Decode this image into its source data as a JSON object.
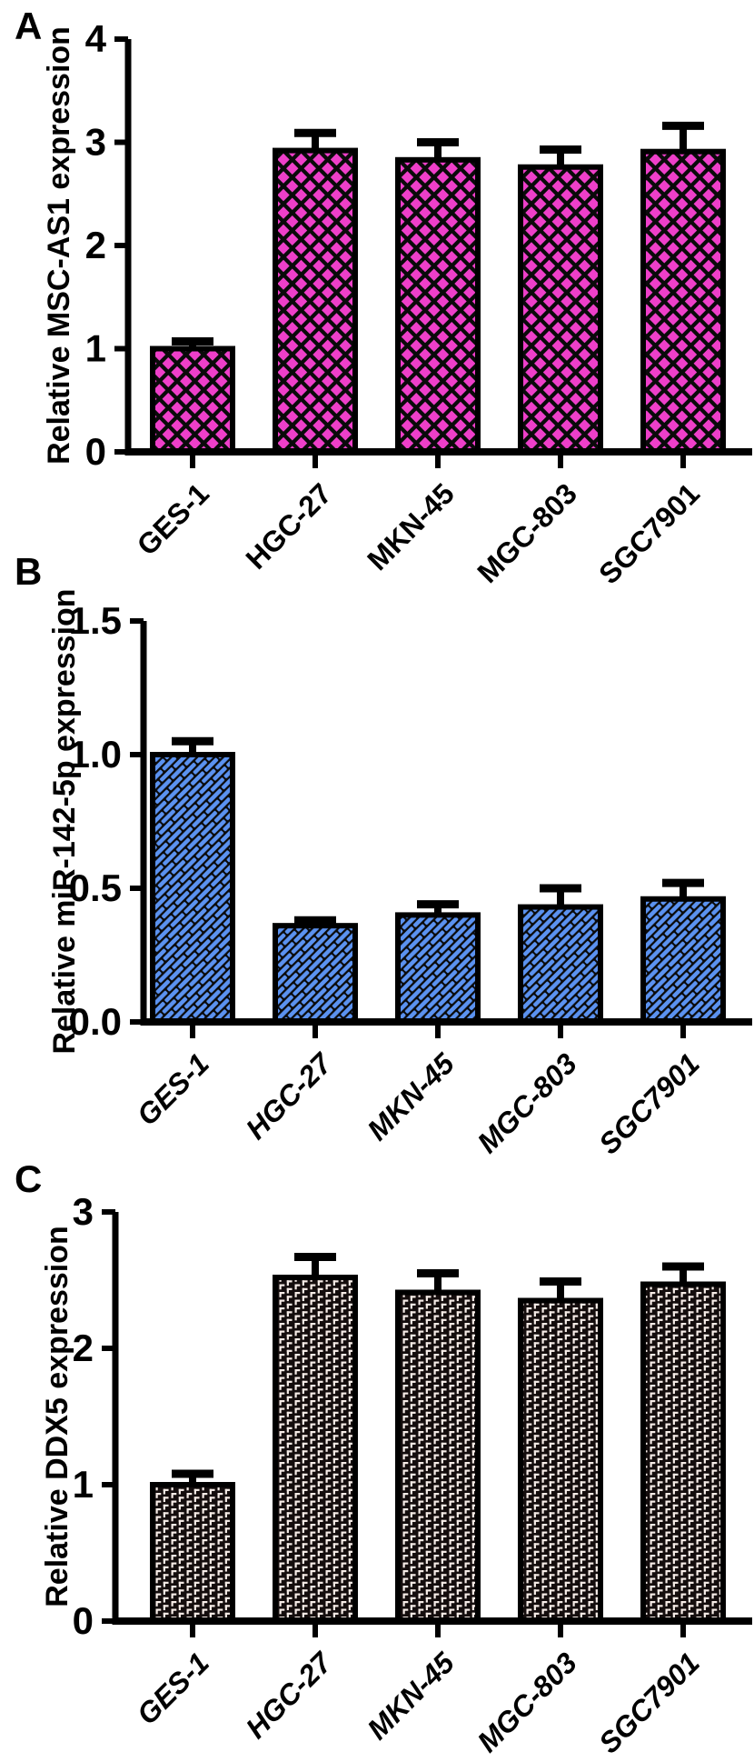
{
  "figure": {
    "background": "#ffffff",
    "axis_color": "#000000"
  },
  "chart_data": [
    {
      "type": "bar",
      "panel_label": "A",
      "title": "",
      "xlabel": "",
      "ylabel": "Relative MSC-AS1 expression",
      "categories": [
        "GES-1",
        "HGC-27",
        "MKN-45",
        "MGC-803",
        "SGC7901"
      ],
      "values": [
        1.0,
        2.92,
        2.83,
        2.76,
        2.91
      ],
      "errors_plus": [
        0.07,
        0.17,
        0.17,
        0.17,
        0.25
      ],
      "ylim": [
        0,
        4
      ],
      "yticks": [
        0,
        1,
        2,
        3,
        4
      ],
      "ytick_decimals": 0,
      "grid": "off",
      "legend": "none",
      "pattern": "diamond-lattice",
      "bar_fill_color": "#ee3fc9",
      "bar_bg_color": "#0a0a0a",
      "category_style": "normal"
    },
    {
      "type": "bar",
      "panel_label": "B",
      "title": "",
      "xlabel": "",
      "ylabel": "Relative miR-142-5p expression",
      "categories": [
        "GES-1",
        "HGC-27",
        "MKN-45",
        "MGC-803",
        "SGC7901"
      ],
      "values": [
        1.0,
        0.36,
        0.4,
        0.43,
        0.46
      ],
      "errors_plus": [
        0.05,
        0.02,
        0.04,
        0.07,
        0.06
      ],
      "ylim": [
        0,
        1.5
      ],
      "yticks": [
        0,
        0.5,
        1.0,
        1.5
      ],
      "ytick_decimals": 1,
      "grid": "off",
      "legend": "none",
      "pattern": "diagonal-bricks",
      "bar_fill_color": "#5b92f0",
      "bar_bg_color": "#0a0a0a",
      "category_style": "italic"
    },
    {
      "type": "bar",
      "panel_label": "C",
      "title": "",
      "xlabel": "",
      "ylabel": "Relative DDX5 expression",
      "categories": [
        "GES-1",
        "HGC-27",
        "MKN-45",
        "MGC-803",
        "SGC7901"
      ],
      "values": [
        1.0,
        2.52,
        2.41,
        2.35,
        2.47
      ],
      "errors_plus": [
        0.08,
        0.15,
        0.14,
        0.14,
        0.13
      ],
      "ylim": [
        0,
        3
      ],
      "yticks": [
        0,
        1,
        2,
        3
      ],
      "ytick_decimals": 0,
      "grid": "off",
      "legend": "none",
      "pattern": "bracket-grid",
      "bar_fill_color": "#f6ece7",
      "bar_bg_color": "#140d0d",
      "category_style": "italic"
    }
  ]
}
